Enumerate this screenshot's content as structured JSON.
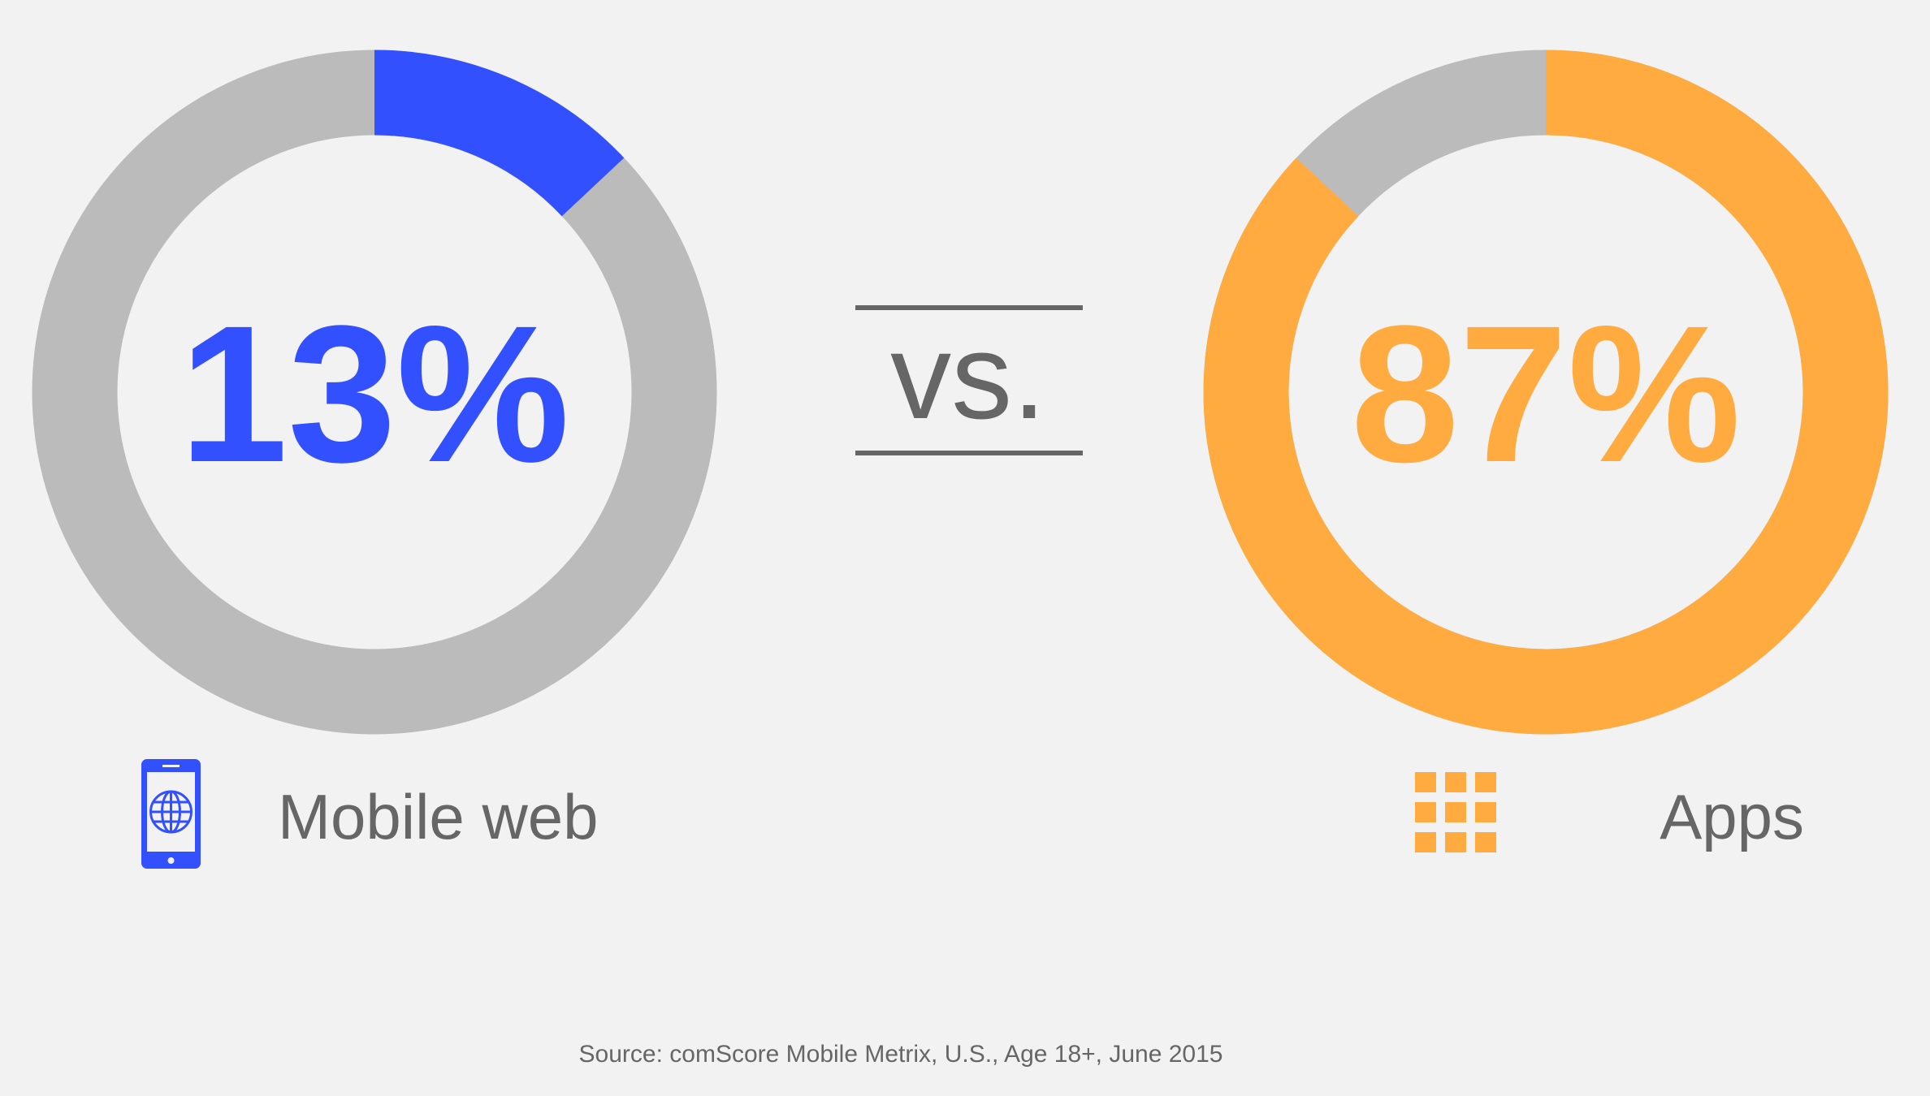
{
  "chart_data": [
    {
      "type": "donut",
      "value": 13,
      "value_label": "13%",
      "label": "Mobile web",
      "color": "#3350ff",
      "track_color": "#bbbbbb"
    },
    {
      "type": "donut",
      "value": 87,
      "value_label": "87%",
      "label": "Apps",
      "color": "#ffab40",
      "track_color": "#bbbbbb"
    }
  ],
  "separator": "vs.",
  "source": "Source: comScore Mobile Metrix, U.S., Age 18+, June 2015"
}
